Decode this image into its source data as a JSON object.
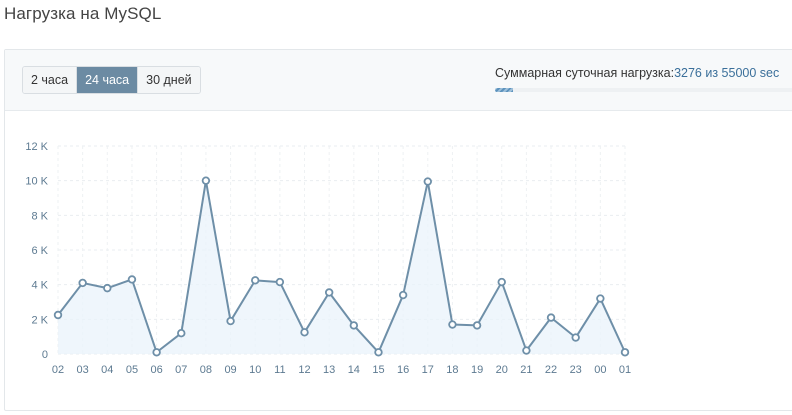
{
  "page": {
    "title": "Нагрузка на MySQL"
  },
  "range_tabs": [
    {
      "label": "2 часа",
      "active": false
    },
    {
      "label": "24 часа",
      "active": true
    },
    {
      "label": "30 дней",
      "active": false
    }
  ],
  "daily_load": {
    "label": "Суммарная суточная нагрузка:",
    "value_text": "3276 из 55000 sec",
    "used": 3276,
    "limit": 55000
  },
  "colors": {
    "line": "#6e8fa8",
    "fill": "#eaf3fb",
    "active_tab": "#6c8ba3",
    "axis_text": "#5d7a91"
  },
  "chart_data": {
    "type": "area",
    "x": [
      "02",
      "03",
      "04",
      "05",
      "06",
      "07",
      "08",
      "09",
      "10",
      "11",
      "12",
      "13",
      "14",
      "15",
      "16",
      "17",
      "18",
      "19",
      "20",
      "21",
      "22",
      "23",
      "00",
      "01"
    ],
    "series": [
      {
        "values": [
          2250,
          4100,
          3800,
          4300,
          100,
          1200,
          10000,
          1900,
          4250,
          4150,
          1250,
          3550,
          1650,
          100,
          3400,
          9950,
          1700,
          1650,
          4150,
          200,
          2100,
          950,
          3200,
          100
        ]
      }
    ],
    "yticks": [
      "0",
      "2 K",
      "4 K",
      "6 K",
      "8 K",
      "10 K",
      "12 K"
    ],
    "ylim": [
      0,
      12000
    ],
    "grid": true,
    "markers": "circle"
  }
}
